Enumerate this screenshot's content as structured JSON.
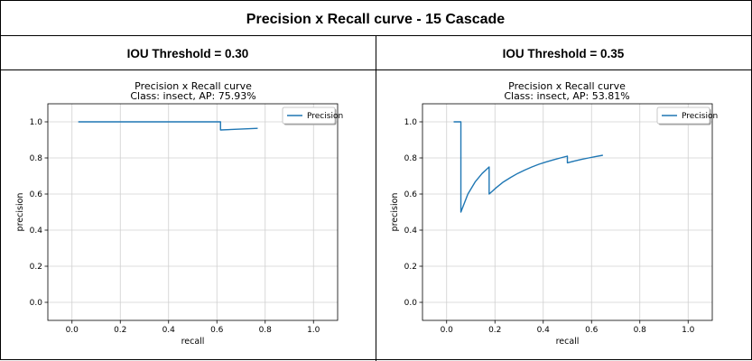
{
  "page": {
    "title": "Precision x Recall curve - 15 Cascade"
  },
  "panels": [
    {
      "header": "IOU Threshold = 0.30"
    },
    {
      "header": "IOU Threshold = 0.35"
    }
  ],
  "colors": {
    "series": "#1f77b4",
    "grid": "#d0d0d0",
    "border": "#000000"
  },
  "chart_data": [
    {
      "type": "line",
      "title": "Precision x Recall curve",
      "subtitle": "Class: insect, AP: 75.93%",
      "xlabel": "recall",
      "ylabel": "precision",
      "xlim": [
        -0.1,
        1.1
      ],
      "ylim": [
        -0.1,
        1.1
      ],
      "xticks": [
        "0.0",
        "0.2",
        "0.4",
        "0.6",
        "0.8",
        "1.0"
      ],
      "yticks": [
        "0.0",
        "0.2",
        "0.4",
        "0.6",
        "0.8",
        "1.0"
      ],
      "grid": true,
      "legend": "top-right",
      "series": [
        {
          "name": "Precision",
          "points": [
            [
              0.026,
              1.0
            ],
            [
              0.615,
              1.0
            ],
            [
              0.615,
              0.955
            ],
            [
              0.769,
              0.964
            ]
          ]
        }
      ]
    },
    {
      "type": "line",
      "title": "Precision x Recall curve",
      "subtitle": "Class: insect, AP: 53.81%",
      "xlabel": "recall",
      "ylabel": "precision",
      "xlim": [
        -0.1,
        1.1
      ],
      "ylim": [
        -0.1,
        1.1
      ],
      "xticks": [
        "0.0",
        "0.2",
        "0.4",
        "0.6",
        "0.8",
        "1.0"
      ],
      "yticks": [
        "0.0",
        "0.2",
        "0.4",
        "0.6",
        "0.8",
        "1.0"
      ],
      "grid": true,
      "legend": "top-right",
      "series": [
        {
          "name": "Precision",
          "points": [
            [
              0.029,
              1.0
            ],
            [
              0.059,
              1.0
            ],
            [
              0.059,
              0.5
            ],
            [
              0.088,
              0.6
            ],
            [
              0.118,
              0.667
            ],
            [
              0.147,
              0.714
            ],
            [
              0.176,
              0.75
            ],
            [
              0.176,
              0.6
            ],
            [
              0.206,
              0.636
            ],
            [
              0.235,
              0.667
            ],
            [
              0.265,
              0.692
            ],
            [
              0.294,
              0.714
            ],
            [
              0.324,
              0.733
            ],
            [
              0.353,
              0.75
            ],
            [
              0.382,
              0.765
            ],
            [
              0.412,
              0.778
            ],
            [
              0.441,
              0.789
            ],
            [
              0.471,
              0.8
            ],
            [
              0.5,
              0.81
            ],
            [
              0.5,
              0.773
            ],
            [
              0.529,
              0.783
            ],
            [
              0.559,
              0.792
            ],
            [
              0.588,
              0.8
            ],
            [
              0.618,
              0.808
            ],
            [
              0.647,
              0.815
            ]
          ]
        }
      ]
    }
  ]
}
